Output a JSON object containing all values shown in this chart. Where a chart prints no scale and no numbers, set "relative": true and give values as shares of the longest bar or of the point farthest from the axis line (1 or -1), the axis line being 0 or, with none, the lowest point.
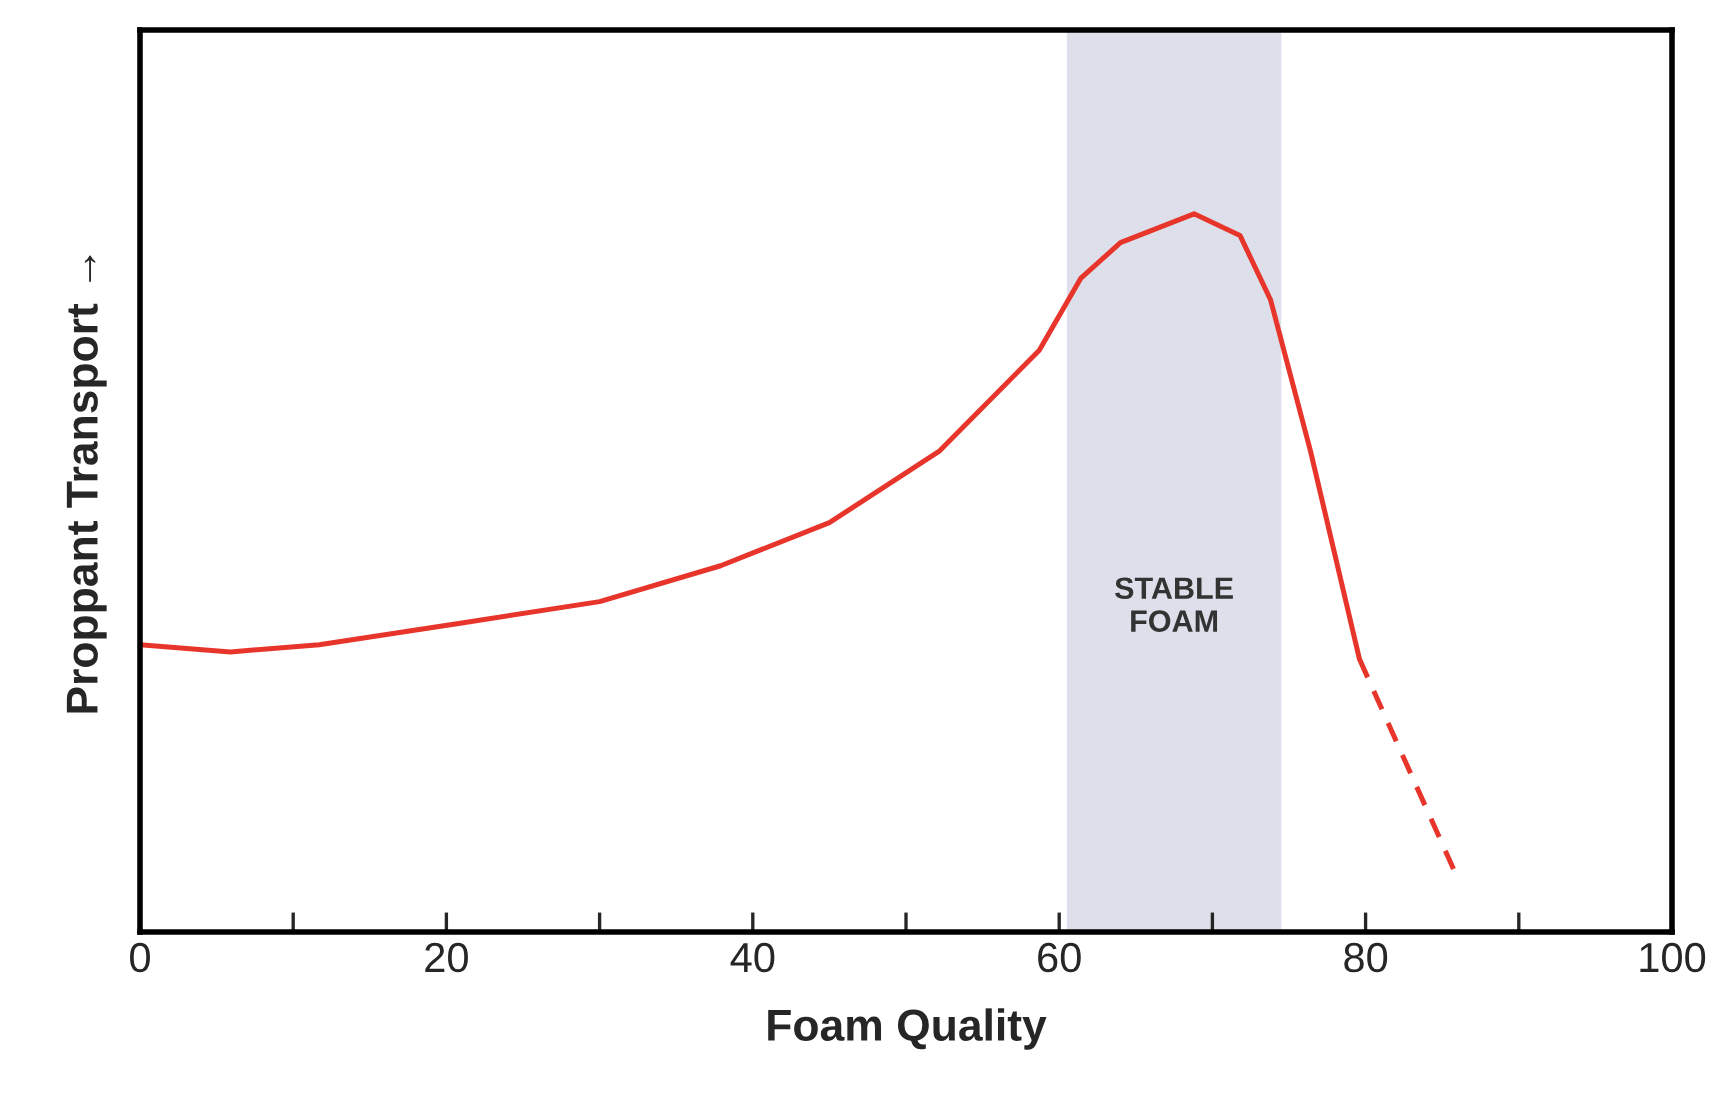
{
  "chart_data": {
    "type": "line",
    "relative": true,
    "xlabel": "Foam Quality",
    "ylabel": "Proppant Transport →",
    "xlim": [
      0,
      100
    ],
    "xticks": [
      0,
      {
        "value": 10,
        "label": null
      },
      20,
      {
        "value": 30,
        "label": null
      },
      40,
      {
        "value": 50,
        "label": null
      },
      60,
      {
        "value": 70,
        "label": null
      },
      80,
      {
        "value": 90,
        "label": null
      },
      100
    ],
    "series": [
      {
        "color": "#e8352b",
        "line_style": "solid",
        "x": [
          0,
          5.9,
          11.7,
          20.9,
          30,
          37.9,
          45,
          52.2,
          58.7,
          61.4,
          64,
          68.8,
          71.8,
          73.8,
          76.4,
          79.6
        ],
        "values": [
          0.4,
          0.39,
          0.4,
          0.43,
          0.46,
          0.51,
          0.57,
          0.67,
          0.81,
          0.91,
          0.96,
          1.0,
          0.97,
          0.88,
          0.67,
          0.38
        ]
      },
      {
        "color": "#e8352b",
        "line_style": "dashed",
        "x": [
          79.6,
          85.9
        ],
        "values": [
          0.38,
          0.08
        ]
      }
    ],
    "bands": [
      {
        "axis": "x",
        "from": 60.5,
        "to": 74.5,
        "label": "STABLE\nFOAM",
        "color": "#dde0ea"
      }
    ],
    "tick_labels": "x"
  }
}
